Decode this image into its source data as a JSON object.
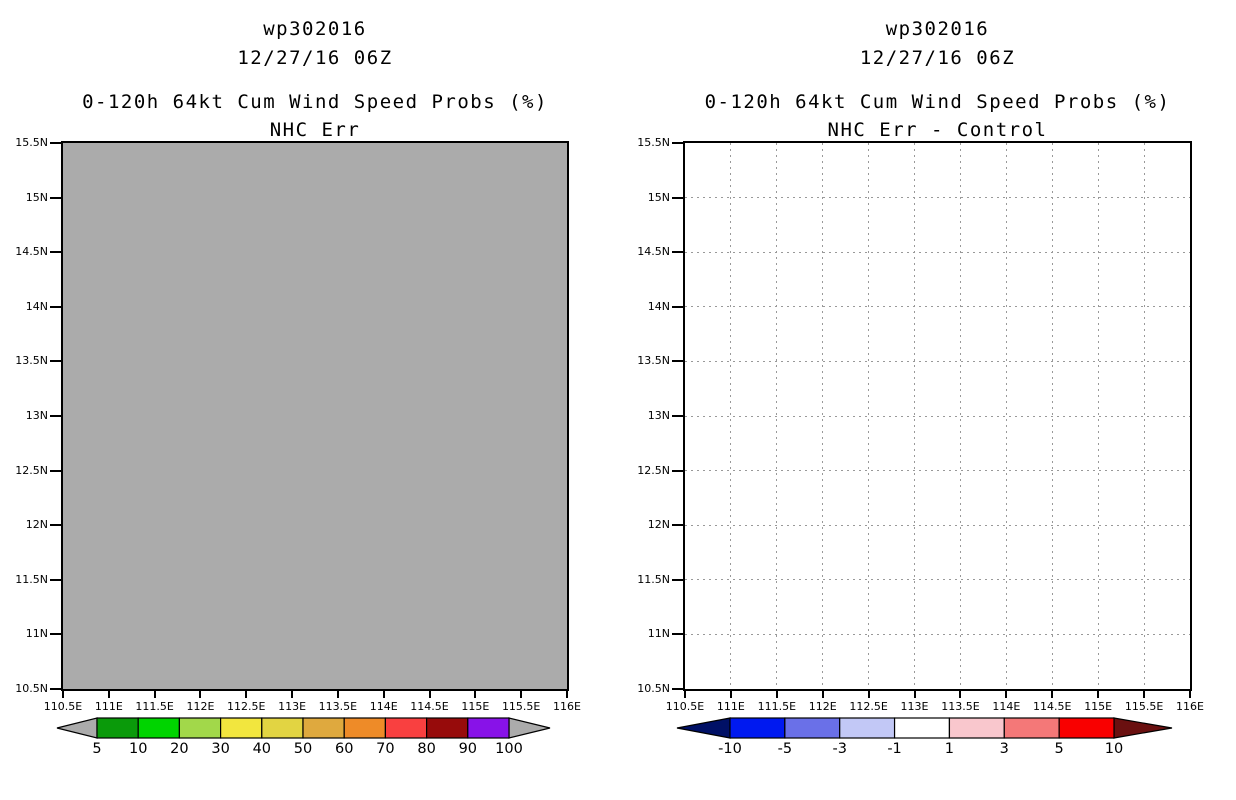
{
  "figure": {
    "background": "#ffffff",
    "text_color": "#000000",
    "axis_color": "#000000"
  },
  "panels": [
    {
      "name": "left",
      "header": {
        "storm_id": "wp302016",
        "datetime": "12/27/16 06Z"
      },
      "title": "0-120h 64kt Cum Wind Speed Probs (%)",
      "subtitle": "NHC Err",
      "plot": {
        "fill": "#ababab",
        "grid": false,
        "grid_color": "#999999",
        "y_tick_labels": [
          "15.5N",
          "15N",
          "14.5N",
          "14N",
          "13.5N",
          "13N",
          "12.5N",
          "12N",
          "11.5N",
          "11N",
          "10.5N"
        ],
        "x_tick_labels": [
          "110.5E",
          "111E",
          "111.5E",
          "112E",
          "112.5E",
          "113E",
          "113.5E",
          "114E",
          "114.5E",
          "115E",
          "115.5E",
          "116E"
        ]
      },
      "colorbar": {
        "labels": [
          "5",
          "10",
          "20",
          "30",
          "40",
          "50",
          "60",
          "70",
          "80",
          "90",
          "100"
        ],
        "segment_colors": [
          "#0a9a0a",
          "#00d400",
          "#a2d84a",
          "#f2e63e",
          "#e2d442",
          "#dfa93e",
          "#ee8b28",
          "#f94040",
          "#970b0b",
          "#8812e8"
        ],
        "left_arrow_color": "#ababab",
        "right_arrow_color": "#ababab"
      }
    },
    {
      "name": "right",
      "header": {
        "storm_id": "wp302016",
        "datetime": "12/27/16 06Z"
      },
      "title": "0-120h 64kt Cum Wind Speed Probs (%)",
      "subtitle": "NHC Err - Control",
      "plot": {
        "fill": "#ffffff",
        "grid": true,
        "grid_color": "#999999",
        "y_tick_labels": [
          "15.5N",
          "15N",
          "14.5N",
          "14N",
          "13.5N",
          "13N",
          "12.5N",
          "12N",
          "11.5N",
          "11N",
          "10.5N"
        ],
        "x_tick_labels": [
          "110.5E",
          "111E",
          "111.5E",
          "112E",
          "112.5E",
          "113E",
          "113.5E",
          "114E",
          "114.5E",
          "115E",
          "115.5E",
          "116E"
        ]
      },
      "colorbar": {
        "labels": [
          "-10",
          "-5",
          "-3",
          "-1",
          "1",
          "3",
          "5",
          "10"
        ],
        "segment_colors": [
          "#0019f0",
          "#6a70e8",
          "#c2c8f6",
          "#ffffff",
          "#f9c7cd",
          "#f47878",
          "#f90000"
        ],
        "left_arrow_color": "#001066",
        "right_arrow_color": "#6a1010"
      }
    }
  ],
  "chart_data": [
    {
      "type": "heatmap",
      "panel": "left",
      "title": "wp302016 12/27/16 06Z",
      "subtitle": "0-120h 64kt Cum Wind Speed Probs (%) NHC Err",
      "x_range": [
        110.5,
        116
      ],
      "y_range": [
        10.5,
        15.5
      ],
      "x_tick_labels": [
        "110.5E",
        "111E",
        "111.5E",
        "112E",
        "112.5E",
        "113E",
        "113.5E",
        "114E",
        "114.5E",
        "115E",
        "115.5E",
        "116E"
      ],
      "y_tick_labels": [
        "15.5N",
        "15N",
        "14.5N",
        "14N",
        "13.5N",
        "13N",
        "12.5N",
        "12N",
        "11.5N",
        "11N",
        "10.5N"
      ],
      "colorbar_levels": [
        5,
        10,
        20,
        30,
        40,
        50,
        60,
        70,
        80,
        90,
        100
      ],
      "colorbar_colors": [
        "#0a9a0a",
        "#00d400",
        "#a2d84a",
        "#f2e63e",
        "#e2d442",
        "#dfa93e",
        "#ee8b28",
        "#f94040",
        "#970b0b",
        "#8812e8"
      ],
      "field": "uniform solid gray background; no probability contours at or above 5% are drawn anywhere in the domain",
      "grid": false,
      "legend_position": "bottom"
    },
    {
      "type": "heatmap",
      "panel": "right",
      "title": "wp302016 12/27/16 06Z",
      "subtitle": "0-120h 64kt Cum Wind Speed Probs (%) NHC Err - Control",
      "x_range": [
        110.5,
        116
      ],
      "y_range": [
        10.5,
        15.5
      ],
      "x_tick_labels": [
        "110.5E",
        "111E",
        "111.5E",
        "112E",
        "112.5E",
        "113E",
        "113.5E",
        "114E",
        "114.5E",
        "115E",
        "115.5E",
        "116E"
      ],
      "y_tick_labels": [
        "15.5N",
        "15N",
        "14.5N",
        "14N",
        "13.5N",
        "13N",
        "12.5N",
        "12N",
        "11.5N",
        "11N",
        "10.5N"
      ],
      "colorbar_levels": [
        -10,
        -5,
        -3,
        -1,
        1,
        3,
        5,
        10
      ],
      "colorbar_colors": [
        "#0019f0",
        "#6a70e8",
        "#c2c8f6",
        "#ffffff",
        "#f9c7cd",
        "#f47878",
        "#f90000"
      ],
      "field": "empty white difference field with dotted 0.5-degree graticule; no difference values outside the -1 to 1 band are drawn",
      "grid": true,
      "legend_position": "bottom"
    }
  ]
}
